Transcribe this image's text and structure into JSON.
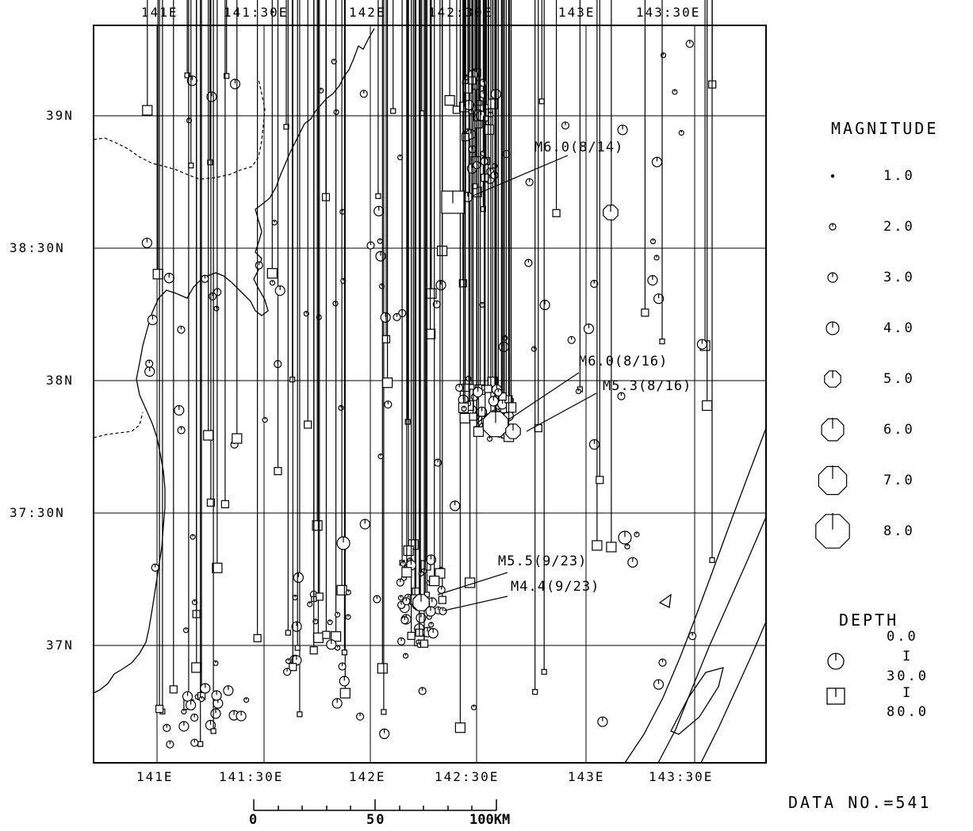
{
  "top_lon_labels": [
    "141E",
    "141:30E",
    "142E",
    "142:30E",
    "143E",
    "143:30E"
  ],
  "bottom_lon_labels": [
    "141E",
    "141:30E",
    "142E",
    "142:30E",
    "143E",
    "143:30E"
  ],
  "lat_labels": [
    "39N",
    "38:30N",
    "38N",
    "37:30N",
    "37N"
  ],
  "annotations": [
    {
      "text": "M6.0(8/14)"
    },
    {
      "text": "M6.0(8/16)"
    },
    {
      "text": "M5.3(8/16)"
    },
    {
      "text": "M5.5(9/23)"
    },
    {
      "text": "M4.4(9/23)"
    }
  ],
  "legend": {
    "magnitude_title": "MAGNITUDE",
    "magnitudes": [
      "1.0",
      "2.0",
      "3.0",
      "4.0",
      "5.0",
      "6.0",
      "7.0",
      "8.0"
    ],
    "depth_title": "DEPTH",
    "depth_top": "0.0",
    "depth_mid": "30.0",
    "depth_bottom": "80.0",
    "depth_sep": "I"
  },
  "scale_bar": {
    "labels": [
      "0",
      "50",
      "100KM"
    ]
  },
  "data_no": "DATA NO.=541"
}
